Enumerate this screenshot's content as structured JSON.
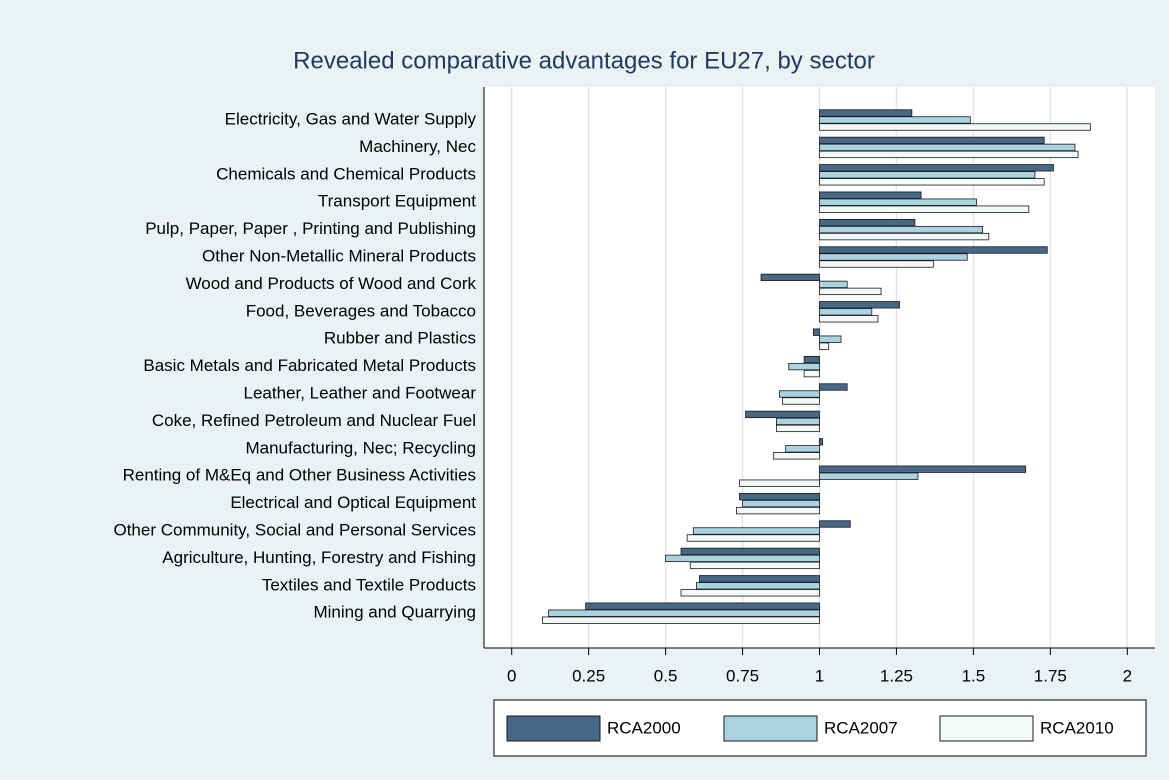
{
  "chart_data": {
    "type": "bar",
    "orientation": "horizontal",
    "title": "Revealed comparative advantages for EU27, by sector",
    "categories": [
      "Electricity, Gas and Water Supply",
      "Machinery, Nec",
      "Chemicals and Chemical Products",
      "Transport Equipment",
      "Pulp, Paper, Paper , Printing and Publishing",
      "Other Non-Metallic Mineral Products",
      "Wood and Products of Wood and Cork",
      "Food, Beverages and Tobacco",
      "Rubber and Plastics",
      "Basic Metals and Fabricated Metal Products",
      "Leather, Leather and Footwear",
      "Coke, Refined Petroleum and Nuclear Fuel",
      "Manufacturing, Nec; Recycling",
      "Renting of M&Eq and Other Business Activities",
      "Electrical and Optical Equipment",
      "Other Community, Social and Personal Services",
      "Agriculture, Hunting, Forestry and Fishing",
      "Textiles and Textile Products",
      "Mining and Quarrying"
    ],
    "series": [
      {
        "name": "RCA2000",
        "color": "#466786",
        "values": [
          1.3,
          1.73,
          1.76,
          1.33,
          1.31,
          1.74,
          0.81,
          1.26,
          0.98,
          0.95,
          1.09,
          0.76,
          1.01,
          1.67,
          0.74,
          1.1,
          0.55,
          0.61,
          0.24
        ]
      },
      {
        "name": "RCA2007",
        "color": "#a9d3e0",
        "values": [
          1.49,
          1.83,
          1.7,
          1.51,
          1.53,
          1.48,
          1.09,
          1.17,
          1.07,
          0.9,
          0.87,
          0.86,
          0.89,
          1.32,
          0.75,
          0.59,
          0.5,
          0.6,
          0.12
        ]
      },
      {
        "name": "RCA2010",
        "color": "#f3f8f9",
        "values": [
          1.88,
          1.84,
          1.73,
          1.68,
          1.55,
          1.37,
          1.2,
          1.19,
          1.03,
          0.95,
          0.88,
          0.86,
          0.85,
          0.74,
          0.73,
          0.57,
          0.58,
          0.55,
          0.1
        ]
      }
    ],
    "base": 1,
    "xlim": [
      -0.09,
      2.09
    ],
    "xticks": [
      0,
      0.25,
      0.5,
      0.75,
      1,
      1.25,
      1.5,
      1.75,
      2
    ],
    "grid": true,
    "legend": "bottom"
  }
}
